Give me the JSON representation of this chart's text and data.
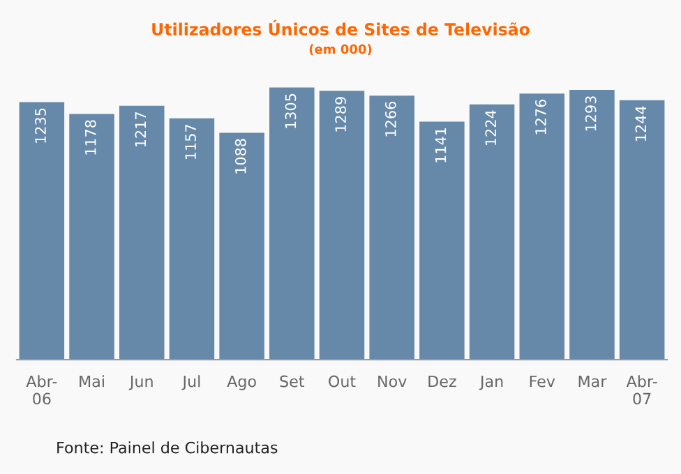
{
  "chart_data": {
    "type": "bar",
    "title": "Utilizadores Únicos de Sites de Televisão",
    "subtitle": "(em 000)",
    "categories": [
      "Abr-\n06",
      "Mai",
      "Jun",
      "Jul",
      "Ago",
      "Set",
      "Out",
      "Nov",
      "Dez",
      "Jan",
      "Fev",
      "Mar",
      "Abr-\n07"
    ],
    "values": [
      1235,
      1178,
      1217,
      1157,
      1088,
      1305,
      1289,
      1266,
      1141,
      1224,
      1276,
      1293,
      1244
    ],
    "color": "#6689a9",
    "data_labels": true,
    "grid": false,
    "legend": false,
    "annotations": [
      "Fonte: Painel de Cibernautas"
    ]
  }
}
